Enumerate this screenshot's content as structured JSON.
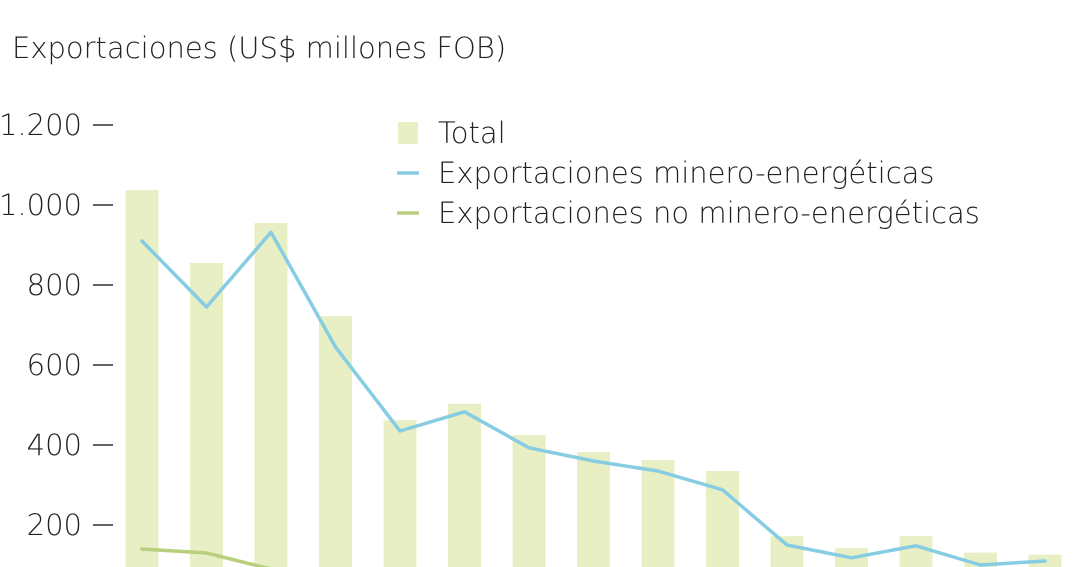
{
  "chart_data": {
    "type": "bar",
    "title": "Exportaciones (US$ millones FOB)",
    "xlabel": "",
    "ylabel": "",
    "ylim": [
      100,
      1200
    ],
    "yticks": [
      {
        "value": 1200,
        "label": "1.200"
      },
      {
        "value": 1000,
        "label": "1.000"
      },
      {
        "value": 800,
        "label": "800"
      },
      {
        "value": 600,
        "label": "600"
      },
      {
        "value": 400,
        "label": "400"
      },
      {
        "value": 200,
        "label": "200"
      }
    ],
    "grid": false,
    "legend_position": "top-right",
    "series": [
      {
        "name": "Total",
        "type": "bar",
        "color": "#e8efc4",
        "values": [
          1037,
          855,
          955,
          722,
          462,
          503,
          425,
          382,
          362,
          335,
          172,
          142,
          172,
          131,
          126
        ]
      },
      {
        "name": "Exportaciones minero-energéticas",
        "type": "line",
        "color": "#86cde3",
        "values": [
          910,
          745,
          932,
          645,
          435,
          483,
          393,
          360,
          335,
          288,
          150,
          118,
          148,
          100,
          110
        ]
      },
      {
        "name": "Exportaciones no minero-energéticas",
        "type": "line",
        "color": "#b9cf7e",
        "values": [
          140,
          130,
          90,
          null,
          null,
          null,
          null,
          null,
          null,
          null,
          null,
          null,
          null,
          null,
          null
        ]
      }
    ]
  }
}
